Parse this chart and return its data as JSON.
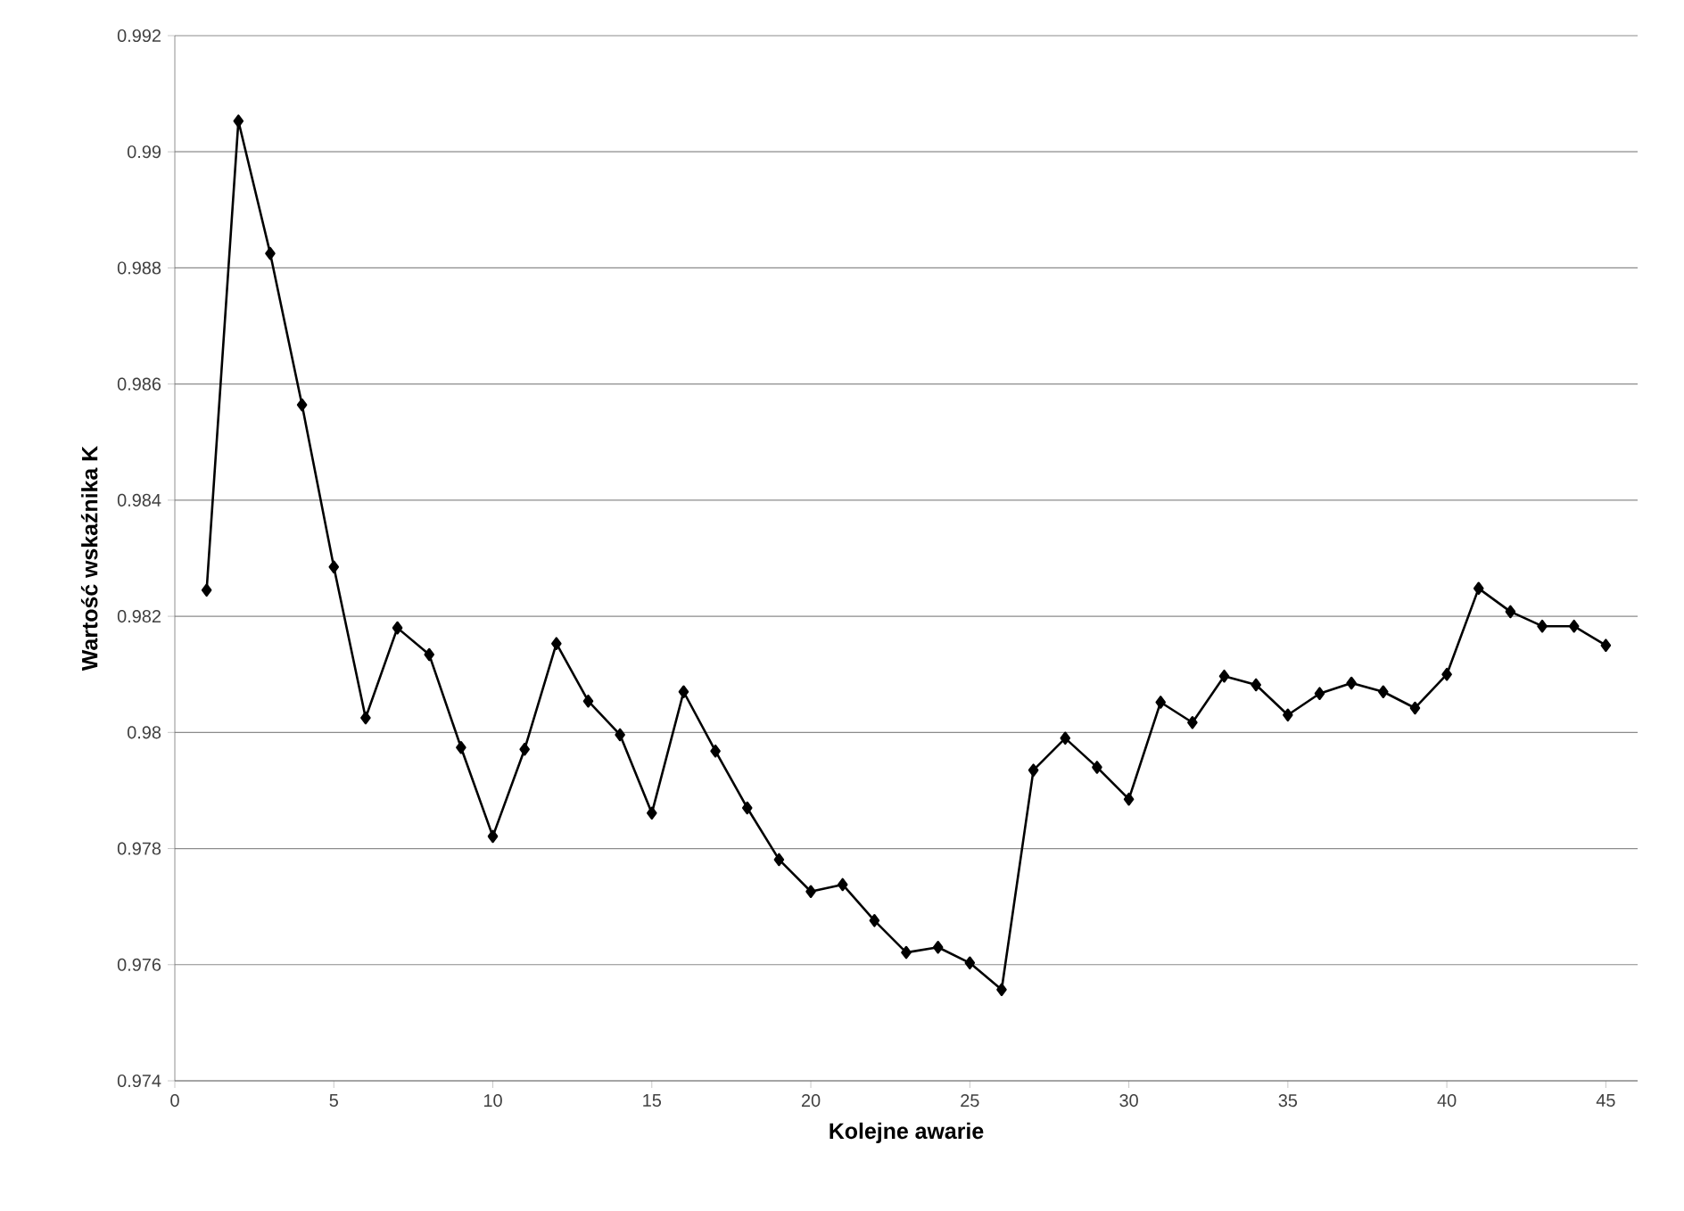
{
  "chart_data": {
    "type": "line",
    "xlabel": "Kolejne awarie",
    "ylabel": "Wartość wskaźnika K",
    "x": [
      1,
      2,
      3,
      4,
      5,
      6,
      7,
      8,
      9,
      10,
      11,
      12,
      13,
      14,
      15,
      16,
      17,
      18,
      19,
      20,
      21,
      22,
      23,
      24,
      25,
      26,
      27,
      28,
      29,
      30,
      31,
      32,
      33,
      34,
      35,
      36,
      37,
      38,
      39,
      40,
      41,
      42,
      43,
      44,
      45
    ],
    "series": [
      {
        "color": "#000000",
        "values": [
          0.98245,
          0.99053,
          0.98825,
          0.98564,
          0.98285,
          0.98025,
          0.9818,
          0.98134,
          0.97974,
          0.97821,
          0.97971,
          0.98153,
          0.98054,
          0.97996,
          0.97861,
          0.9807,
          0.97968,
          0.9787,
          0.97781,
          0.97726,
          0.97738,
          0.97676,
          0.97621,
          0.9763,
          0.97603,
          0.97557,
          0.97935,
          0.9799,
          0.9794,
          0.97885,
          0.98052,
          0.98017,
          0.98097,
          0.98082,
          0.9803,
          0.98067,
          0.98085,
          0.9807,
          0.98042,
          0.981,
          0.98248,
          0.98208,
          0.98183,
          0.98183,
          0.9815
        ]
      }
    ],
    "xlim": [
      0,
      46
    ],
    "ylim": [
      0.974,
      0.992
    ],
    "xticks": [
      0,
      5,
      10,
      15,
      20,
      25,
      30,
      35,
      40,
      45
    ],
    "yticks": [
      0.974,
      0.976,
      0.978,
      0.98,
      0.982,
      0.984,
      0.986,
      0.988,
      0.99,
      0.992
    ],
    "grid": "y",
    "marker": "diamond",
    "line_style": "solid"
  }
}
